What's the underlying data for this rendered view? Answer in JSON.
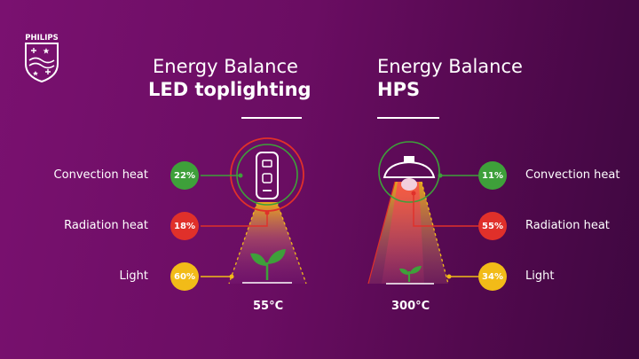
{
  "brand": {
    "name": "PHILIPS",
    "logo_icon": "philips-shield-logo"
  },
  "colors": {
    "convection": "#3ea03a",
    "radiation": "#e0302a",
    "light": "#f2bb18",
    "background": "#6e0e66"
  },
  "left": {
    "title_line1": "Energy Balance",
    "title_line2": "LED toplighting",
    "temperature": "55°C",
    "convection": {
      "label": "Convection heat",
      "value": "22%"
    },
    "radiation": {
      "label": "Radiation heat",
      "value": "18%"
    },
    "light": {
      "label": "Light",
      "value": "60%"
    }
  },
  "right": {
    "title_line1": "Energy Balance",
    "title_line2": "HPS",
    "temperature": "300°C",
    "convection": {
      "label": "Convection heat",
      "value": "11%"
    },
    "radiation": {
      "label": "Radiation heat",
      "value": "55%"
    },
    "light": {
      "label": "Light",
      "value": "34%"
    }
  }
}
